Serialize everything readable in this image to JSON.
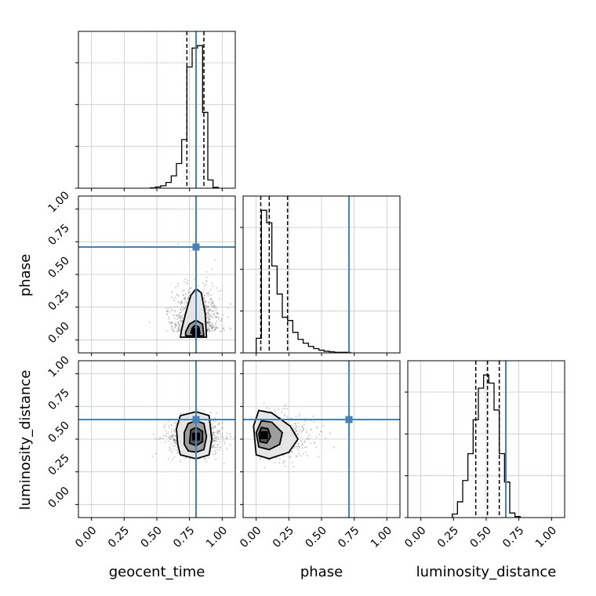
{
  "chart_data": {
    "type": "corner",
    "parameters": [
      "geocent_time",
      "phase",
      "luminosity_distance"
    ],
    "axis_range": [
      -0.1,
      1.1
    ],
    "ticks": [
      0.0,
      0.25,
      0.5,
      0.75,
      1.0
    ],
    "tick_labels": [
      "0.00",
      "0.25",
      "0.50",
      "0.75",
      "1.00"
    ],
    "grid": true,
    "colors": {
      "truth": "#4682b4",
      "hist": "#000000",
      "grid": "#c8c8c8",
      "scatter": "#555555",
      "contour_fill": [
        "#e6e6e6",
        "#9a9a9a",
        "#4e4e4e"
      ]
    },
    "truths": {
      "geocent_time": 0.8,
      "phase": 0.71,
      "luminosity_distance": 0.65
    },
    "quantiles": {
      "geocent_time": [
        0.73,
        0.8,
        0.86
      ],
      "phase": [
        0.035,
        0.1,
        0.24
      ],
      "luminosity_distance": [
        0.42,
        0.51,
        0.6
      ]
    },
    "histograms": {
      "geocent_time": {
        "edges": [
          0.45,
          0.49,
          0.53,
          0.57,
          0.61,
          0.65,
          0.69,
          0.73,
          0.77,
          0.81,
          0.85,
          0.89,
          0.93,
          0.97
        ],
        "counts": [
          1,
          3,
          6,
          14,
          30,
          60,
          118,
          294,
          340,
          346,
          184,
          20,
          2
        ]
      },
      "phase": {
        "edges": [
          0.0,
          0.04,
          0.08,
          0.12,
          0.16,
          0.2,
          0.24,
          0.28,
          0.32,
          0.36,
          0.4,
          0.44,
          0.48,
          0.52,
          0.56,
          0.6,
          0.64,
          0.68,
          0.72
        ],
        "counts": [
          27,
          264,
          241,
          161,
          109,
          66,
          60,
          38,
          25,
          18,
          12,
          8,
          5,
          3,
          2,
          1,
          1,
          1
        ]
      },
      "luminosity_distance": {
        "edges": [
          0.24,
          0.28,
          0.32,
          0.36,
          0.4,
          0.44,
          0.48,
          0.52,
          0.56,
          0.6,
          0.64,
          0.68,
          0.72,
          0.76
        ],
        "counts": [
          7,
          31,
          73,
          126,
          193,
          255,
          281,
          265,
          212,
          126,
          70,
          9,
          2
        ]
      }
    },
    "joint_2d": [
      {
        "x": "geocent_time",
        "y": "phase",
        "mode": [
          0.8,
          0.06
        ],
        "cloud": {
          "x_range": [
            0.45,
            0.98
          ],
          "y_range": [
            0.0,
            0.8
          ]
        },
        "contours": [
          [
            [
              0.68,
              0.02
            ],
            [
              0.88,
              0.02
            ],
            [
              0.87,
              0.2
            ],
            [
              0.84,
              0.36
            ],
            [
              0.8,
              0.39
            ],
            [
              0.76,
              0.34
            ],
            [
              0.72,
              0.2
            ],
            [
              0.69,
              0.08
            ]
          ],
          [
            [
              0.72,
              0.03
            ],
            [
              0.86,
              0.03
            ],
            [
              0.85,
              0.12
            ],
            [
              0.8,
              0.15
            ],
            [
              0.75,
              0.12
            ],
            [
              0.72,
              0.06
            ]
          ],
          [
            [
              0.76,
              0.05
            ],
            [
              0.83,
              0.05
            ],
            [
              0.82,
              0.1
            ],
            [
              0.79,
              0.11
            ],
            [
              0.77,
              0.09
            ]
          ]
        ]
      },
      {
        "x": "geocent_time",
        "y": "luminosity_distance",
        "mode": [
          0.8,
          0.52
        ],
        "cloud": {
          "x_range": [
            0.4,
            1.02
          ],
          "y_range": [
            0.32,
            0.75
          ]
        },
        "contours": [
          [
            [
              0.66,
              0.46
            ],
            [
              0.68,
              0.38
            ],
            [
              0.8,
              0.35
            ],
            [
              0.9,
              0.38
            ],
            [
              0.92,
              0.5
            ],
            [
              0.9,
              0.68
            ],
            [
              0.8,
              0.71
            ],
            [
              0.68,
              0.68
            ],
            [
              0.65,
              0.58
            ]
          ],
          [
            [
              0.71,
              0.46
            ],
            [
              0.74,
              0.41
            ],
            [
              0.8,
              0.4
            ],
            [
              0.86,
              0.42
            ],
            [
              0.88,
              0.52
            ],
            [
              0.86,
              0.62
            ],
            [
              0.8,
              0.64
            ],
            [
              0.74,
              0.62
            ],
            [
              0.71,
              0.55
            ]
          ],
          [
            [
              0.75,
              0.47
            ],
            [
              0.8,
              0.45
            ],
            [
              0.85,
              0.48
            ],
            [
              0.85,
              0.56
            ],
            [
              0.8,
              0.59
            ],
            [
              0.76,
              0.57
            ]
          ]
        ]
      },
      {
        "x": "phase",
        "y": "luminosity_distance",
        "mode": [
          0.06,
          0.53
        ],
        "cloud": {
          "x_range": [
            -0.02,
            0.7
          ],
          "y_range": [
            0.3,
            0.78
          ]
        },
        "contours": [
          [
            [
              0.0,
              0.38
            ],
            [
              0.1,
              0.35
            ],
            [
              0.25,
              0.4
            ],
            [
              0.32,
              0.5
            ],
            [
              0.26,
              0.6
            ],
            [
              0.12,
              0.7
            ],
            [
              0.02,
              0.72
            ],
            [
              -0.02,
              0.6
            ]
          ],
          [
            [
              0.02,
              0.44
            ],
            [
              0.1,
              0.42
            ],
            [
              0.18,
              0.46
            ],
            [
              0.2,
              0.55
            ],
            [
              0.12,
              0.63
            ],
            [
              0.04,
              0.64
            ],
            [
              0.0,
              0.55
            ]
          ],
          [
            [
              0.03,
              0.48
            ],
            [
              0.08,
              0.47
            ],
            [
              0.11,
              0.52
            ],
            [
              0.09,
              0.58
            ],
            [
              0.04,
              0.59
            ],
            [
              0.02,
              0.54
            ]
          ]
        ]
      }
    ],
    "axis_labels": {
      "bottom": [
        "geocent_time",
        "phase",
        "luminosity_distance"
      ],
      "left": [
        "phase",
        "luminosity_distance"
      ]
    }
  }
}
